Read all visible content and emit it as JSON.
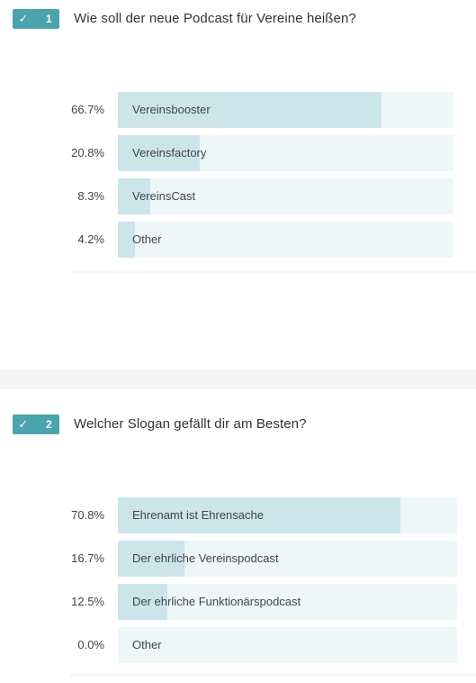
{
  "check_glyph": "✓",
  "questions": [
    {
      "number": "1",
      "title": "Wie soll der neue Podcast für Vereine heißen?",
      "options": [
        {
          "label": "Vereinsbooster",
          "percent": "66.7%",
          "value": 66.7
        },
        {
          "label": "Vereinsfactory",
          "percent": "20.8%",
          "value": 20.8
        },
        {
          "label": "VereinsCast",
          "percent": "8.3%",
          "value": 8.3
        },
        {
          "label": "Other",
          "percent": "4.2%",
          "value": 4.2
        }
      ]
    },
    {
      "number": "2",
      "title": "Welcher Slogan gefällt dir am Besten?",
      "options": [
        {
          "label": "Ehrenamt ist Ehrensache",
          "percent": "70.8%",
          "value": 70.8
        },
        {
          "label": "Der ehrliche Vereinspodcast",
          "percent": "16.7%",
          "value": 16.7
        },
        {
          "label": "Der ehrliche Funktionärspodcast",
          "percent": "12.5%",
          "value": 12.5
        },
        {
          "label": "Other",
          "percent": "0.0%",
          "value": 0.0
        }
      ]
    }
  ],
  "colors": {
    "badge": "#4aa3ad",
    "bar_fill": "#cbe5ea",
    "bar_track": "#eef7f8",
    "separator": "#f5f5f5"
  },
  "chart_data": [
    {
      "type": "bar",
      "title": "Wie soll der neue Podcast für Vereine heißen?",
      "categories": [
        "Vereinsbooster",
        "Vereinsfactory",
        "VereinsCast",
        "Other"
      ],
      "values": [
        66.7,
        20.8,
        8.3,
        4.2
      ],
      "ylim": [
        0,
        100
      ]
    },
    {
      "type": "bar",
      "title": "Welcher Slogan gefällt dir am Besten?",
      "categories": [
        "Ehrenamt ist Ehrensache",
        "Der ehrliche Vereinspodcast",
        "Der ehrliche Funktionärspodcast",
        "Other"
      ],
      "values": [
        70.8,
        16.7,
        12.5,
        0.0
      ],
      "ylim": [
        0,
        100
      ]
    }
  ]
}
